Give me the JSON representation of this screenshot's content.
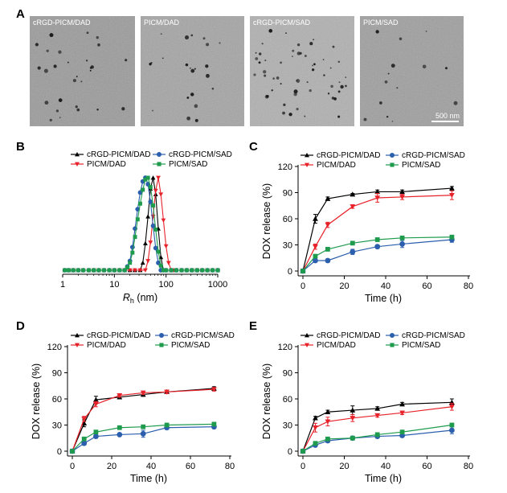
{
  "panel_a": {
    "letter": "A",
    "images": [
      {
        "label": "cRGD-PICM/DAD"
      },
      {
        "label": "PICM/DAD"
      },
      {
        "label": "cRGD-PICM/SAD"
      },
      {
        "label": "PICM/SAD"
      }
    ],
    "scale_bar": "500 nm"
  },
  "series_styles": [
    {
      "name": "cRGD-PICM/DAD",
      "color": "#000000",
      "marker": "triangle-up"
    },
    {
      "name": "PICM/DAD",
      "color": "#e8222a",
      "marker": "triangle-down"
    },
    {
      "name": "cRGD-PICM/SAD",
      "color": "#2b5fad",
      "marker": "circle"
    },
    {
      "name": "PICM/SAD",
      "color": "#1e9b4d",
      "marker": "square"
    }
  ],
  "chart_data": [
    {
      "panel": "B",
      "type": "line",
      "xscale": "log",
      "xlabel_main": "R",
      "xlabel_sub": "h",
      "xlabel_unit": " (nm)",
      "ylabel": "",
      "xticks": [
        "1",
        "10",
        "100",
        "1000"
      ],
      "xlim": [
        1,
        1000
      ],
      "ylim": [
        0,
        100
      ],
      "series": [
        {
          "name": "cRGD-PICM/DAD",
          "x": [
            1.1,
            1.3,
            1.6,
            2,
            2.5,
            3.2,
            4,
            5,
            6.3,
            8,
            10,
            12.6,
            15.8,
            20,
            25,
            31.6,
            35.5,
            39.8,
            44.7,
            50,
            56.2,
            63,
            70.8,
            79.4,
            89,
            100,
            126,
            158,
            200,
            251,
            316,
            398,
            501,
            631,
            794,
            1000
          ],
          "y": [
            0,
            0,
            0,
            0,
            0,
            0,
            0,
            0,
            0,
            0,
            0,
            0,
            0,
            0,
            0,
            0,
            8,
            29,
            58,
            88,
            100,
            82,
            45,
            14,
            0,
            0,
            0,
            0,
            0,
            0,
            0,
            0,
            0,
            0,
            0,
            0
          ]
        },
        {
          "name": "PICM/DAD",
          "x": [
            1.1,
            1.3,
            1.6,
            2,
            2.5,
            3.2,
            4,
            5,
            6.3,
            8,
            10,
            12.6,
            15.8,
            20,
            25,
            31.6,
            39.8,
            44.7,
            50,
            56.2,
            63,
            70.8,
            79.4,
            89,
            100,
            112,
            126,
            141,
            158,
            200,
            251,
            316,
            398,
            501,
            631,
            794,
            1000
          ],
          "y": [
            0,
            0,
            0,
            0,
            0,
            0,
            0,
            0,
            0,
            0,
            0,
            0,
            0,
            0,
            0,
            0,
            0,
            10,
            30,
            58,
            86,
            100,
            82,
            54,
            26,
            8,
            0,
            0,
            0,
            0,
            0,
            0,
            0,
            0,
            0,
            0,
            0
          ]
        },
        {
          "name": "cRGD-PICM/SAD",
          "x": [
            1.1,
            1.3,
            1.6,
            2,
            2.5,
            3.2,
            4,
            5,
            6.3,
            8,
            10,
            12.6,
            15.8,
            17.8,
            20,
            22.4,
            25.1,
            28.2,
            31.6,
            35.5,
            39.8,
            44.7,
            50,
            56.2,
            63,
            70.8,
            79.4,
            89,
            100,
            126,
            158,
            200,
            251,
            316,
            398,
            501,
            631,
            794,
            1000
          ],
          "y": [
            0,
            0,
            0,
            0,
            0,
            0,
            0,
            0,
            0,
            0,
            0,
            0,
            0,
            4,
            10,
            25,
            45,
            66,
            84,
            96,
            100,
            93,
            74,
            48,
            24,
            8,
            0,
            0,
            0,
            0,
            0,
            0,
            0,
            0,
            0,
            0,
            0,
            0,
            0
          ]
        },
        {
          "name": "PICM/SAD",
          "x": [
            1.1,
            1.3,
            1.6,
            2,
            2.5,
            3.2,
            4,
            5,
            6.3,
            8,
            10,
            12.6,
            15.8,
            17.8,
            20,
            22.4,
            25.1,
            28.2,
            31.6,
            35.5,
            39.8,
            44.7,
            50,
            56.2,
            63,
            70.8,
            79.4,
            89,
            100,
            126,
            158,
            200,
            251,
            316,
            398,
            501,
            631,
            794,
            1000
          ],
          "y": [
            0,
            0,
            0,
            0,
            0,
            0,
            0,
            0,
            0,
            0,
            0,
            0,
            0,
            3,
            8,
            19,
            36,
            55,
            72,
            87,
            98,
            100,
            90,
            70,
            44,
            20,
            5,
            0,
            0,
            0,
            0,
            0,
            0,
            0,
            0,
            0,
            0,
            0,
            0
          ]
        }
      ]
    },
    {
      "panel": "C",
      "type": "line",
      "xlabel": "Time (h)",
      "ylabel": "DOX release (%)",
      "xlim": [
        0,
        80
      ],
      "ylim": [
        0,
        120
      ],
      "xticks": [
        0,
        20,
        40,
        60,
        80
      ],
      "yticks": [
        0,
        30,
        60,
        90,
        120
      ],
      "series": [
        {
          "name": "cRGD-PICM/DAD",
          "x": [
            0,
            6,
            12,
            24,
            36,
            48,
            72
          ],
          "y": [
            0,
            60,
            83,
            88,
            91,
            91,
            95
          ],
          "err": [
            0,
            5,
            2,
            1,
            2,
            2,
            2
          ]
        },
        {
          "name": "PICM/DAD",
          "x": [
            0,
            6,
            12,
            24,
            36,
            48,
            72
          ],
          "y": [
            0,
            28,
            53,
            74,
            84,
            85,
            87
          ],
          "err": [
            0,
            3,
            3,
            2,
            5,
            3,
            5
          ]
        },
        {
          "name": "cRGD-PICM/SAD",
          "x": [
            0,
            6,
            12,
            24,
            36,
            48,
            72
          ],
          "y": [
            0,
            12,
            12,
            22,
            28,
            31,
            36
          ],
          "err": [
            0,
            2,
            2,
            3,
            2,
            4,
            3
          ]
        },
        {
          "name": "PICM/SAD",
          "x": [
            0,
            6,
            12,
            24,
            36,
            48,
            72
          ],
          "y": [
            0,
            17,
            25,
            32,
            36,
            38,
            39
          ],
          "err": [
            0,
            2,
            2,
            2,
            2,
            2,
            2
          ]
        }
      ]
    },
    {
      "panel": "D",
      "type": "line",
      "xlabel": "Time (h)",
      "ylabel": "DOX release (%)",
      "xlim": [
        0,
        80
      ],
      "ylim": [
        0,
        120
      ],
      "xticks": [
        0,
        20,
        40,
        60,
        80
      ],
      "yticks": [
        0,
        30,
        60,
        90,
        120
      ],
      "series": [
        {
          "name": "cRGD-PICM/DAD",
          "x": [
            0,
            6,
            12,
            24,
            36,
            48,
            72
          ],
          "y": [
            0,
            32,
            59,
            62,
            65,
            68,
            72
          ],
          "err": [
            0,
            4,
            4,
            2,
            2,
            2,
            2
          ]
        },
        {
          "name": "PICM/DAD",
          "x": [
            0,
            6,
            12,
            24,
            36,
            48,
            72
          ],
          "y": [
            0,
            37,
            54,
            64,
            67,
            68,
            71
          ],
          "err": [
            0,
            3,
            3,
            2,
            2,
            2,
            2
          ]
        },
        {
          "name": "cRGD-PICM/SAD",
          "x": [
            0,
            6,
            12,
            24,
            36,
            48,
            72
          ],
          "y": [
            0,
            9,
            17,
            19,
            20,
            27,
            28
          ],
          "err": [
            0,
            2,
            2,
            1,
            4,
            2,
            1
          ]
        },
        {
          "name": "PICM/SAD",
          "x": [
            0,
            6,
            12,
            24,
            36,
            48,
            72
          ],
          "y": [
            0,
            14,
            22,
            27,
            28,
            30,
            31
          ],
          "err": [
            0,
            2,
            2,
            2,
            2,
            2,
            2
          ]
        }
      ]
    },
    {
      "panel": "E",
      "type": "line",
      "xlabel": "Time (h)",
      "ylabel": "DOX release (%)",
      "xlim": [
        0,
        80
      ],
      "ylim": [
        0,
        120
      ],
      "xticks": [
        0,
        20,
        40,
        60,
        80
      ],
      "yticks": [
        0,
        30,
        60,
        90,
        120
      ],
      "series": [
        {
          "name": "cRGD-PICM/DAD",
          "x": [
            0,
            6,
            12,
            24,
            36,
            48,
            72
          ],
          "y": [
            0,
            38,
            45,
            47,
            49,
            54,
            56
          ],
          "err": [
            0,
            2,
            2,
            5,
            2,
            2,
            4
          ]
        },
        {
          "name": "PICM/DAD",
          "x": [
            0,
            6,
            12,
            24,
            36,
            48,
            72
          ],
          "y": [
            0,
            27,
            34,
            38,
            41,
            44,
            51
          ],
          "err": [
            0,
            5,
            5,
            4,
            2,
            2,
            4
          ]
        },
        {
          "name": "cRGD-PICM/SAD",
          "x": [
            0,
            6,
            12,
            24,
            36,
            48,
            72
          ],
          "y": [
            0,
            7,
            12,
            15,
            17,
            18,
            24
          ],
          "err": [
            0,
            2,
            2,
            2,
            2,
            2,
            4
          ]
        },
        {
          "name": "PICM/SAD",
          "x": [
            0,
            6,
            12,
            24,
            36,
            48,
            72
          ],
          "y": [
            0,
            9,
            14,
            15,
            19,
            22,
            30
          ],
          "err": [
            0,
            2,
            2,
            2,
            2,
            2,
            2
          ]
        }
      ]
    }
  ]
}
